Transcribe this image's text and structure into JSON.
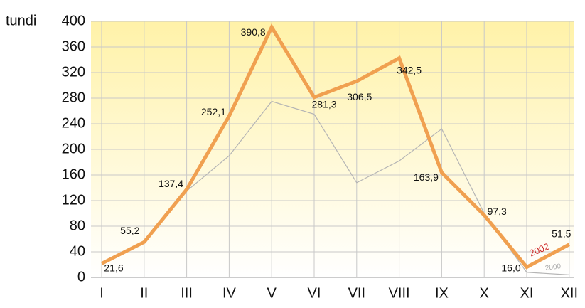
{
  "chart_data": {
    "type": "line",
    "y_label": "tundi",
    "categories": [
      "I",
      "II",
      "III",
      "IV",
      "V",
      "VI",
      "VII",
      "VIII",
      "IX",
      "X",
      "XI",
      "XII"
    ],
    "series": [
      {
        "name": "2000",
        "color": "#b5b5b5",
        "values": [
          20,
          55,
          135,
          190,
          275,
          255,
          148,
          182,
          232,
          100,
          8,
          4
        ]
      },
      {
        "name": "2002",
        "color": "#f0a050",
        "values": [
          21.6,
          55.2,
          137.4,
          252.1,
          390.8,
          281.3,
          306.5,
          342.5,
          163.9,
          97.3,
          16.0,
          51.5
        ],
        "value_labels": [
          "21,6",
          "55,2",
          "137,4",
          "252,1",
          "390,8",
          "281,3",
          "306,5",
          "342,5",
          "163,9",
          "97,3",
          "16,0",
          "51,5"
        ]
      }
    ],
    "ylim": [
      0,
      400
    ],
    "yticks": [
      0,
      40,
      80,
      120,
      160,
      200,
      240,
      280,
      320,
      360,
      400
    ],
    "grid": true
  }
}
